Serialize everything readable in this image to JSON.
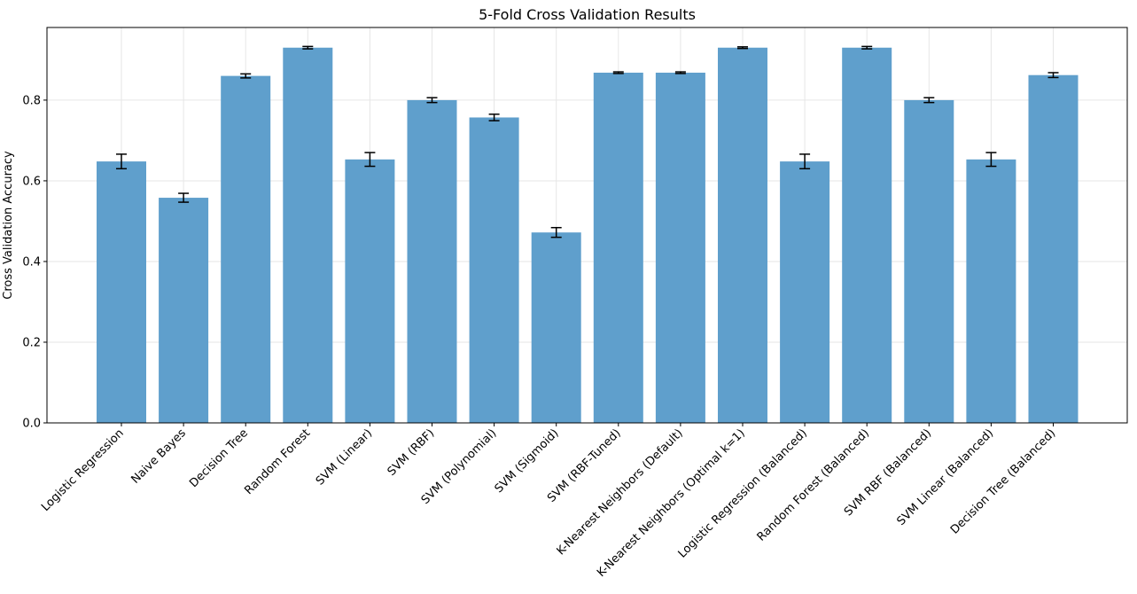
{
  "chart_data": {
    "type": "bar",
    "title": "5-Fold Cross Validation Results",
    "xlabel": "",
    "ylabel": "Cross Validation Accuracy",
    "ylim": [
      0,
      0.98
    ],
    "yticks": [
      "0.0",
      "0.2",
      "0.4",
      "0.6",
      "0.8"
    ],
    "grid": true,
    "bar_color": "#5f9fcc",
    "error_color": "#000000",
    "categories": [
      "Logistic Regression",
      "Naive Bayes",
      "Decision Tree",
      "Random Forest",
      "SVM (Linear)",
      "SVM (RBF)",
      "SVM (Polynomial)",
      "SVM (Sigmoid)",
      "SVM (RBF-Tuned)",
      "K-Nearest Neighbors (Default)",
      "K-Nearest Neighbors (Optimal k=1)",
      "Logistic Regression (Balanced)",
      "Random Forest (Balanced)",
      "SVM RBF (Balanced)",
      "SVM Linear (Balanced)",
      "Decision Tree (Balanced)"
    ],
    "values": [
      0.648,
      0.558,
      0.86,
      0.93,
      0.653,
      0.8,
      0.757,
      0.472,
      0.868,
      0.868,
      0.93,
      0.648,
      0.93,
      0.8,
      0.653,
      0.862
    ],
    "errors": [
      0.018,
      0.011,
      0.005,
      0.003,
      0.017,
      0.006,
      0.008,
      0.012,
      0.002,
      0.002,
      0.002,
      0.018,
      0.003,
      0.006,
      0.017,
      0.006
    ]
  }
}
